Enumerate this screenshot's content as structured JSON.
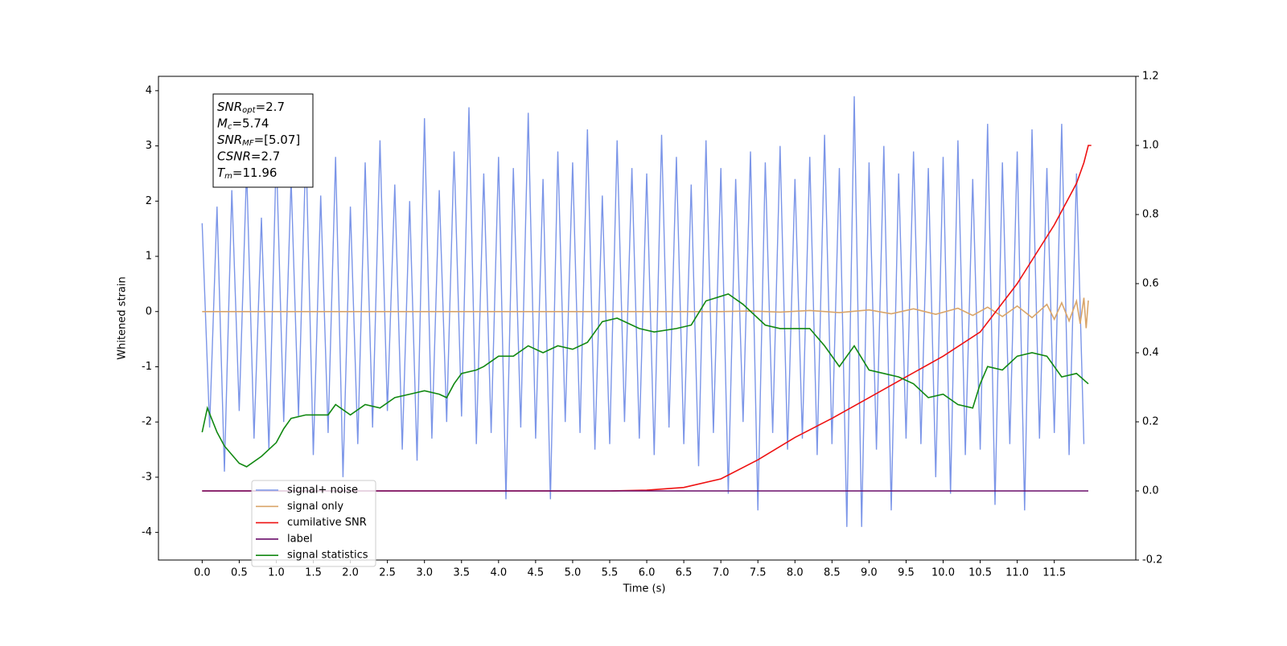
{
  "chart_data": {
    "type": "line",
    "xlabel": "Time (s)",
    "ylabel": "Whitened strain",
    "xlim": [
      -0.59,
      12.6
    ],
    "ylim": [
      -4.5,
      4.26
    ],
    "y2lim": [
      -0.2,
      1.2
    ],
    "xticks": [
      {
        "value": 0,
        "label": "0.0"
      },
      0.5,
      {
        "value": 1,
        "label": "1.0"
      },
      1.5,
      {
        "value": 2,
        "label": "2.0"
      },
      2.5,
      {
        "value": 3,
        "label": "3.0"
      },
      3.5,
      {
        "value": 4,
        "label": "4.0"
      },
      4.5,
      {
        "value": 5,
        "label": "5.0"
      },
      5.5,
      {
        "value": 6,
        "label": "6.0"
      },
      6.5,
      {
        "value": 7,
        "label": "7.0"
      },
      7.5,
      {
        "value": 8,
        "label": "8.0"
      },
      8.5,
      {
        "value": 9,
        "label": "9.0"
      },
      9.5,
      {
        "value": 10,
        "label": "10.0"
      },
      10.5,
      {
        "value": 11,
        "label": "11.0"
      },
      11.5
    ],
    "yticks": [
      -4,
      -3,
      -2,
      -1,
      0,
      1,
      2,
      3,
      4
    ],
    "y2ticks": [
      -0.2,
      {
        "value": 0,
        "label": "0.0"
      },
      0.2,
      0.4,
      0.6,
      0.8,
      {
        "value": 1,
        "label": "1.0"
      },
      1.2
    ],
    "legend_loc": "lower left",
    "annotations": [
      {
        "main": "SNR",
        "sub": "opt",
        "rest": "=2.7"
      },
      {
        "main": "M",
        "sub": "c",
        "rest": "=5.74"
      },
      {
        "main": "SNR",
        "sub": "MF",
        "rest": "=[5.07]"
      },
      {
        "main": "CSNR",
        "sub": "",
        "rest": "=2.7"
      },
      {
        "main": "T",
        "sub": "m",
        "rest": "=11.96"
      }
    ],
    "series": [
      {
        "name": "signal+ noise",
        "color": "#7b95e8",
        "x": [
          0,
          0.1,
          0.2,
          0.3,
          0.4,
          0.5,
          0.6,
          0.7,
          0.8,
          0.9,
          1,
          1.1,
          1.2,
          1.3,
          1.4,
          1.5,
          1.6,
          1.7,
          1.8,
          1.9,
          2,
          2.1,
          2.2,
          2.3,
          2.4,
          2.5,
          2.6,
          2.7,
          2.8,
          2.9,
          3,
          3.1,
          3.2,
          3.3,
          3.4,
          3.5,
          3.6,
          3.7,
          3.8,
          3.9,
          4,
          4.1,
          4.2,
          4.3,
          4.4,
          4.5,
          4.6,
          4.7,
          4.8,
          4.9,
          5,
          5.1,
          5.2,
          5.3,
          5.4,
          5.5,
          5.6,
          5.7,
          5.8,
          5.9,
          6,
          6.1,
          6.2,
          6.3,
          6.4,
          6.5,
          6.6,
          6.7,
          6.8,
          6.9,
          7,
          7.1,
          7.2,
          7.3,
          7.4,
          7.5,
          7.6,
          7.7,
          7.8,
          7.9,
          8,
          8.1,
          8.2,
          8.3,
          8.4,
          8.5,
          8.6,
          8.7,
          8.8,
          8.9,
          9,
          9.1,
          9.2,
          9.3,
          9.4,
          9.5,
          9.6,
          9.7,
          9.8,
          9.9,
          10,
          10.1,
          10.2,
          10.3,
          10.4,
          10.5,
          10.6,
          10.7,
          10.8,
          10.9,
          11,
          11.1,
          11.2,
          11.3,
          11.4,
          11.5,
          11.6,
          11.7,
          11.8,
          11.9
        ],
        "values": [
          1.6,
          -2.1,
          1.9,
          -2.9,
          2.2,
          -1.8,
          2.6,
          -2.3,
          1.7,
          -2.5,
          2.9,
          -2.0,
          2.4,
          -1.9,
          3.0,
          -2.6,
          2.1,
          -2.2,
          2.8,
          -3.0,
          1.9,
          -2.4,
          2.7,
          -2.1,
          3.1,
          -1.8,
          2.3,
          -2.5,
          2.0,
          -2.7,
          3.5,
          -2.3,
          2.2,
          -2.0,
          2.9,
          -1.9,
          3.7,
          -2.4,
          2.5,
          -2.2,
          2.8,
          -3.4,
          2.6,
          -2.1,
          3.6,
          -2.3,
          2.4,
          -3.4,
          2.9,
          -2.0,
          2.7,
          -2.2,
          3.3,
          -2.5,
          2.1,
          -2.4,
          3.1,
          -2.0,
          2.6,
          -2.3,
          2.5,
          -2.6,
          3.2,
          -2.1,
          2.8,
          -2.4,
          2.3,
          -2.8,
          3.1,
          -2.2,
          2.6,
          -3.3,
          2.4,
          -2.0,
          2.9,
          -3.6,
          2.7,
          -2.2,
          3.0,
          -2.5,
          2.4,
          -2.3,
          2.8,
          -2.6,
          3.2,
          -2.4,
          2.6,
          -3.9,
          3.9,
          -3.9,
          2.7,
          -2.5,
          3.0,
          -3.6,
          2.5,
          -2.3,
          2.9,
          -2.4,
          2.6,
          -3.0,
          2.8,
          -3.3,
          3.1,
          -2.6,
          2.4,
          -2.5,
          3.4,
          -3.5,
          2.7,
          -2.4,
          2.9,
          -3.6,
          3.3,
          -2.3,
          2.6,
          -2.2,
          3.4,
          -2.6,
          2.5,
          -2.4
        ]
      },
      {
        "name": "signal only",
        "color": "#d9a56a",
        "x": [
          0,
          7.0,
          7.4,
          7.8,
          8.2,
          8.6,
          9.0,
          9.3,
          9.6,
          9.9,
          10.2,
          10.4,
          10.6,
          10.8,
          11.0,
          11.2,
          11.4,
          11.5,
          11.6,
          11.7,
          11.8,
          11.85,
          11.9,
          11.93,
          11.96
        ],
        "values": [
          0,
          0,
          0.01,
          -0.01,
          0.02,
          -0.02,
          0.03,
          -0.04,
          0.05,
          -0.05,
          0.06,
          -0.07,
          0.08,
          -0.09,
          0.1,
          -0.11,
          0.13,
          -0.14,
          0.16,
          -0.17,
          0.19,
          -0.22,
          0.25,
          -0.3,
          0.2
        ]
      },
      {
        "name": "cumilative SNR",
        "color": "#ee1111",
        "axis": "y2",
        "x": [
          0,
          5.5,
          6,
          6.5,
          7,
          7.5,
          8,
          8.5,
          9,
          9.5,
          10,
          10.5,
          11,
          11.5,
          11.8,
          11.9,
          11.96,
          12.0
        ],
        "values": [
          0,
          0,
          0.002,
          0.01,
          0.035,
          0.09,
          0.155,
          0.21,
          0.27,
          0.33,
          0.39,
          0.46,
          0.6,
          0.77,
          0.89,
          0.95,
          1.0,
          1.0
        ]
      },
      {
        "name": "label",
        "color": "#6a0d6a",
        "axis": "y2",
        "x": [
          0,
          11.96
        ],
        "values": [
          0,
          0
        ]
      },
      {
        "name": "signal statistics",
        "color": "#118811",
        "axis": "y2",
        "x": [
          0,
          0.07,
          0.2,
          0.3,
          0.5,
          0.6,
          0.8,
          1.0,
          1.1,
          1.2,
          1.4,
          1.7,
          1.8,
          2.0,
          2.2,
          2.4,
          2.6,
          2.8,
          3.0,
          3.2,
          3.3,
          3.4,
          3.5,
          3.7,
          3.8,
          4.0,
          4.2,
          4.4,
          4.6,
          4.8,
          5.0,
          5.2,
          5.4,
          5.6,
          5.9,
          6.1,
          6.4,
          6.6,
          6.8,
          7.1,
          7.3,
          7.6,
          7.8,
          8.0,
          8.2,
          8.4,
          8.6,
          8.8,
          9.0,
          9.2,
          9.4,
          9.6,
          9.8,
          10.0,
          10.2,
          10.4,
          10.5,
          10.6,
          10.8,
          11.0,
          11.2,
          11.4,
          11.6,
          11.8,
          11.96
        ],
        "values": [
          0.17,
          0.24,
          0.17,
          0.13,
          0.08,
          0.07,
          0.1,
          0.14,
          0.18,
          0.21,
          0.22,
          0.22,
          0.25,
          0.22,
          0.25,
          0.24,
          0.27,
          0.28,
          0.29,
          0.28,
          0.27,
          0.31,
          0.34,
          0.35,
          0.36,
          0.39,
          0.39,
          0.42,
          0.4,
          0.42,
          0.41,
          0.43,
          0.49,
          0.5,
          0.47,
          0.46,
          0.47,
          0.48,
          0.55,
          0.57,
          0.54,
          0.48,
          0.47,
          0.47,
          0.47,
          0.42,
          0.36,
          0.42,
          0.35,
          0.34,
          0.33,
          0.31,
          0.27,
          0.28,
          0.25,
          0.24,
          0.31,
          0.36,
          0.35,
          0.39,
          0.4,
          0.39,
          0.33,
          0.34,
          0.31
        ]
      }
    ]
  }
}
